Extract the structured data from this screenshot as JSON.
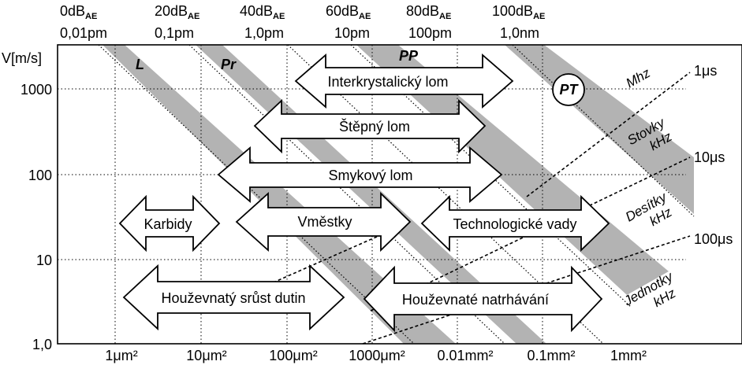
{
  "top_axis": {
    "db_labels": [
      {
        "main": "0dB",
        "sub": "AE"
      },
      {
        "main": "20dB",
        "sub": "AE"
      },
      {
        "main": "40dB",
        "sub": "AE"
      },
      {
        "main": "60dB",
        "sub": "AE"
      },
      {
        "main": "80dB",
        "sub": "AE"
      },
      {
        "main": "100dB",
        "sub": "AE"
      }
    ],
    "length_labels": [
      "0,01pm",
      "0,1pm",
      "1,0pm",
      "10pm",
      "100pm",
      "1,0nm"
    ]
  },
  "y_axis": {
    "title": "V[m/s]",
    "ticks": [
      "1000",
      "100",
      "10",
      "1,0"
    ]
  },
  "x_axis": {
    "ticks": [
      "1μm²",
      "10μm²",
      "100μm²",
      "1000μm²",
      "0.01mm²",
      "0.1mm²",
      "1mm²"
    ]
  },
  "bands": [
    {
      "id": "L",
      "label": "L"
    },
    {
      "id": "Pr",
      "label": "Pr"
    },
    {
      "id": "PP",
      "label": "PP"
    },
    {
      "id": "PT",
      "label": "PT"
    }
  ],
  "mechanisms": [
    {
      "id": "interkrystalicky",
      "label": "Interkrystalický lom"
    },
    {
      "id": "stepny",
      "label": "Štěpný lom"
    },
    {
      "id": "smykovy",
      "label": "Smykový lom"
    },
    {
      "id": "karbidy",
      "label": "Karbidy"
    },
    {
      "id": "vmestky",
      "label": "Vměstky"
    },
    {
      "id": "technologicke",
      "label": "Technologické vady"
    },
    {
      "id": "houzevnaty-srust",
      "label": "Houževnatý srůst dutin"
    },
    {
      "id": "houzevnate-natrhavani",
      "label": "Houževnaté natrhávání"
    }
  ],
  "frequency_labels": {
    "mhz": "Mhz",
    "stovky": [
      "Stovky",
      "kHz"
    ],
    "desitky": [
      "Desítky",
      "kHz"
    ],
    "jednotky": [
      "Jednotky",
      "kHz"
    ]
  },
  "time_labels": [
    "1μs",
    "10μs",
    "100μs"
  ]
}
